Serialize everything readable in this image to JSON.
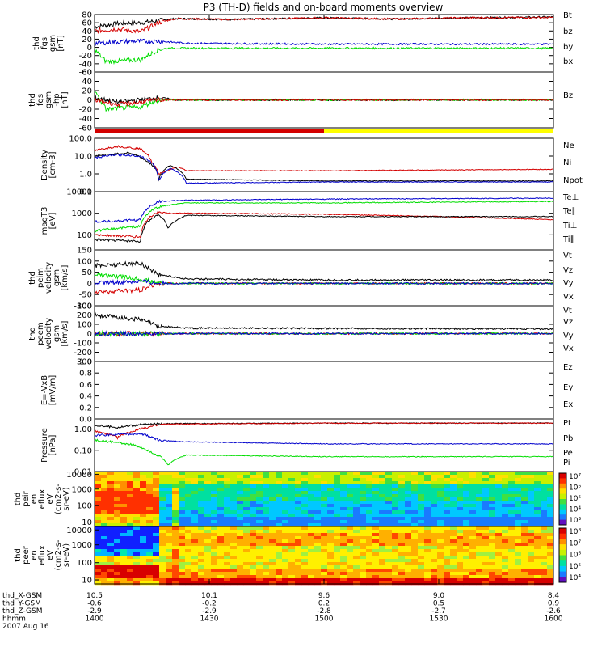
{
  "title": "P3 (TH-D) fields and on-board moments overview",
  "colors": {
    "black": "#000000",
    "red": "#d40000",
    "green": "#00dd00",
    "blue": "#0000cc",
    "yellow": "#ffff00"
  },
  "chart_data": [
    {
      "type": "line",
      "name": "fgs-full",
      "ylabel": [
        "thd",
        "fgs",
        "gsm",
        "[nT]"
      ],
      "yticks": [
        "-60",
        "-40",
        "-20",
        "0",
        "20",
        "40",
        "60",
        "80"
      ],
      "ylim": [
        -60,
        80
      ],
      "series": [
        {
          "name": "Bt",
          "color": "black",
          "points": [
            [
              1400,
              50
            ],
            [
              1410,
              58
            ],
            [
              1420,
              60
            ],
            [
              1428,
              65
            ],
            [
              1435,
              70
            ],
            [
              1460,
              68
            ],
            [
              1500,
              72
            ],
            [
              1530,
              69
            ],
            [
              1560,
              72
            ],
            [
              1600,
              74
            ]
          ]
        },
        {
          "name": "bz",
          "color": "red",
          "points": [
            [
              1400,
              40
            ],
            [
              1410,
              45
            ],
            [
              1420,
              38
            ],
            [
              1428,
              60
            ],
            [
              1435,
              70
            ],
            [
              1460,
              68
            ],
            [
              1500,
              72
            ],
            [
              1530,
              69
            ],
            [
              1560,
              72
            ],
            [
              1600,
              73
            ]
          ]
        },
        {
          "name": "by",
          "color": "green",
          "points": [
            [
              1400,
              -5
            ],
            [
              1405,
              -35
            ],
            [
              1420,
              -30
            ],
            [
              1428,
              -5
            ],
            [
              1432,
              -2
            ],
            [
              1500,
              -2
            ],
            [
              1600,
              -2
            ]
          ]
        },
        {
          "name": "bx",
          "color": "blue",
          "points": [
            [
              1400,
              10
            ],
            [
              1415,
              15
            ],
            [
              1428,
              15
            ],
            [
              1440,
              10
            ],
            [
              1500,
              8
            ],
            [
              1600,
              8
            ]
          ]
        }
      ]
    },
    {
      "type": "line",
      "name": "fgs-hp",
      "ylabel": [
        "thd",
        "fgs",
        "gsm",
        "-hp",
        "[nT]"
      ],
      "yticks": [
        "-60",
        "-40",
        "-20",
        "0",
        "20",
        "40",
        "60"
      ],
      "ylim": [
        -60,
        60
      ],
      "legend": "Bz",
      "series": [
        {
          "name": "Bx",
          "color": "black",
          "points": [
            [
              1400,
              5
            ],
            [
              1410,
              -5
            ],
            [
              1420,
              0
            ],
            [
              1428,
              5
            ],
            [
              1435,
              0
            ],
            [
              1600,
              0
            ]
          ]
        },
        {
          "name": "By",
          "color": "green",
          "points": [
            [
              1400,
              20
            ],
            [
              1405,
              -20
            ],
            [
              1420,
              -15
            ],
            [
              1428,
              0
            ],
            [
              1600,
              0
            ]
          ]
        },
        {
          "name": "Bz",
          "color": "red",
          "points": [
            [
              1400,
              0
            ],
            [
              1410,
              -10
            ],
            [
              1420,
              -5
            ],
            [
              1428,
              0
            ],
            [
              1600,
              0
            ]
          ]
        }
      ]
    },
    {
      "type": "line",
      "name": "density",
      "scale": "log",
      "ylabel": [
        "Density",
        "[cm-3]"
      ],
      "yticks": [
        "0.1",
        "1.0",
        "10.0",
        "100.0"
      ],
      "ylim": [
        0.1,
        100
      ],
      "series": [
        {
          "name": "Ne",
          "color": "red",
          "points": [
            [
              1400,
              20
            ],
            [
              1410,
              35
            ],
            [
              1420,
              25
            ],
            [
              1425,
              4
            ],
            [
              1428,
              1
            ],
            [
              1432,
              1.5
            ],
            [
              1436,
              2.5
            ],
            [
              1440,
              1.5
            ],
            [
              1500,
              1.5
            ],
            [
              1600,
              1.8
            ]
          ]
        },
        {
          "name": "Ni",
          "color": "black",
          "points": [
            [
              1400,
              10
            ],
            [
              1415,
              15
            ],
            [
              1423,
              5
            ],
            [
              1428,
              0.5
            ],
            [
              1433,
              3
            ],
            [
              1440,
              0.5
            ],
            [
              1500,
              0.4
            ],
            [
              1600,
              0.4
            ]
          ]
        },
        {
          "name": "Npot",
          "color": "blue",
          "points": [
            [
              1400,
              8
            ],
            [
              1410,
              12
            ],
            [
              1420,
              10
            ],
            [
              1428,
              0.4
            ],
            [
              1433,
              2
            ],
            [
              1440,
              0.3
            ],
            [
              1500,
              0.35
            ],
            [
              1600,
              0.35
            ]
          ]
        }
      ]
    },
    {
      "type": "line",
      "name": "temperature",
      "scale": "log",
      "ylabel": [
        "magT3",
        "[eV]"
      ],
      "yticks": [
        "100",
        "1000",
        "10000"
      ],
      "ylim": [
        20,
        10000
      ],
      "series": [
        {
          "name": "Te⊥",
          "color": "red",
          "points": [
            [
              1400,
              100
            ],
            [
              1420,
              80
            ],
            [
              1428,
              1200
            ],
            [
              1432,
              1000
            ],
            [
              1440,
              1000
            ],
            [
              1500,
              900
            ],
            [
              1600,
              500
            ]
          ]
        },
        {
          "name": "Te∥",
          "color": "black",
          "points": [
            [
              1400,
              60
            ],
            [
              1420,
              50
            ],
            [
              1428,
              900
            ],
            [
              1432,
              200
            ],
            [
              1440,
              800
            ],
            [
              1500,
              700
            ],
            [
              1600,
              700
            ]
          ]
        },
        {
          "name": "Ti⊥",
          "color": "blue",
          "points": [
            [
              1400,
              400
            ],
            [
              1420,
              500
            ],
            [
              1428,
              3500
            ],
            [
              1440,
              4000
            ],
            [
              1500,
              4500
            ],
            [
              1600,
              5000
            ]
          ]
        },
        {
          "name": "Ti∥",
          "color": "green",
          "points": [
            [
              1400,
              150
            ],
            [
              1420,
              250
            ],
            [
              1428,
              2000
            ],
            [
              1440,
              3000
            ],
            [
              1500,
              3000
            ],
            [
              1600,
              3500
            ]
          ]
        }
      ]
    },
    {
      "type": "line",
      "name": "peim-velocity",
      "ylabel": [
        "thd",
        "peim",
        "velocity",
        "gsm",
        "[km/s]"
      ],
      "yticks": [
        "-100",
        "-50",
        "0",
        "50",
        "100",
        "150"
      ],
      "ylim": [
        -100,
        150
      ],
      "series": [
        {
          "name": "Vt",
          "color": "black",
          "points": [
            [
              1400,
              80
            ],
            [
              1420,
              90
            ],
            [
              1428,
              40
            ],
            [
              1440,
              20
            ],
            [
              1500,
              15
            ],
            [
              1600,
              15
            ]
          ]
        },
        {
          "name": "Vz",
          "color": "red",
          "points": [
            [
              1400,
              -40
            ],
            [
              1420,
              -30
            ],
            [
              1428,
              0
            ],
            [
              1600,
              0
            ]
          ]
        },
        {
          "name": "Vy",
          "color": "green",
          "points": [
            [
              1400,
              40
            ],
            [
              1420,
              20
            ],
            [
              1428,
              0
            ],
            [
              1600,
              0
            ]
          ]
        },
        {
          "name": "Vx",
          "color": "blue",
          "points": [
            [
              1400,
              0
            ],
            [
              1420,
              10
            ],
            [
              1428,
              0
            ],
            [
              1600,
              0
            ]
          ]
        }
      ]
    },
    {
      "type": "line",
      "name": "peem-velocity",
      "ylabel": [
        "thd",
        "peem",
        "velocity",
        "gsm",
        "[km/s]"
      ],
      "yticks": [
        "-300",
        "-200",
        "-100",
        "0",
        "100",
        "200",
        "300"
      ],
      "ylim": [
        -300,
        300
      ],
      "series": [
        {
          "name": "Vt",
          "color": "black",
          "points": [
            [
              1400,
              200
            ],
            [
              1420,
              150
            ],
            [
              1428,
              80
            ],
            [
              1440,
              60
            ],
            [
              1600,
              50
            ]
          ]
        },
        {
          "name": "Vz",
          "color": "red",
          "points": [
            [
              1400,
              0
            ],
            [
              1600,
              0
            ]
          ]
        },
        {
          "name": "Vy",
          "color": "green",
          "points": [
            [
              1400,
              0
            ],
            [
              1600,
              0
            ]
          ]
        },
        {
          "name": "Vx",
          "color": "blue",
          "points": [
            [
              1400,
              0
            ],
            [
              1600,
              0
            ]
          ]
        }
      ]
    },
    {
      "type": "line",
      "name": "efield",
      "ylabel": [
        "E=-VxB",
        "[mV/m]"
      ],
      "yticks": [
        "0.0",
        "0.2",
        "0.4",
        "0.6",
        "0.8",
        "1.0"
      ],
      "ylim": [
        0,
        1
      ],
      "series": [
        {
          "name": "Ez",
          "color": "red",
          "points": []
        },
        {
          "name": "Ey",
          "color": "green",
          "points": []
        },
        {
          "name": "Ex",
          "color": "blue",
          "points": []
        }
      ]
    },
    {
      "type": "line",
      "name": "pressure",
      "scale": "log",
      "ylabel": [
        "Pressure",
        "[nPa]"
      ],
      "yticks": [
        "0.01",
        "0.10",
        "1.00"
      ],
      "ylim": [
        0.01,
        3
      ],
      "series": [
        {
          "name": "Pt",
          "color": "black",
          "points": [
            [
              1400,
              1.5
            ],
            [
              1410,
              1.2
            ],
            [
              1420,
              1.6
            ],
            [
              1430,
              1.8
            ],
            [
              1500,
              1.9
            ],
            [
              1600,
              1.9
            ]
          ]
        },
        {
          "name": "Pb",
          "color": "red",
          "points": [
            [
              1400,
              0.8
            ],
            [
              1410,
              0.4
            ],
            [
              1420,
              1.0
            ],
            [
              1430,
              1.7
            ],
            [
              1500,
              1.9
            ],
            [
              1600,
              1.9
            ]
          ]
        },
        {
          "name": "Pe",
          "color": "green",
          "points": [
            [
              1400,
              0.3
            ],
            [
              1415,
              0.2
            ],
            [
              1425,
              0.08
            ],
            [
              1432,
              0.02
            ],
            [
              1440,
              0.06
            ],
            [
              1500,
              0.05
            ],
            [
              1600,
              0.05
            ]
          ]
        },
        {
          "name": "Pi",
          "color": "blue",
          "points": [
            [
              1400,
              0.5
            ],
            [
              1420,
              0.6
            ],
            [
              1428,
              0.3
            ],
            [
              1440,
              0.25
            ],
            [
              1500,
              0.2
            ],
            [
              1600,
              0.2
            ]
          ]
        }
      ]
    },
    {
      "type": "heatmap",
      "name": "peir-spectrogram",
      "ylabel": [
        "thd",
        "peir",
        "en",
        "eflux",
        "eV",
        "(cm2-s-",
        "sr-eV)"
      ],
      "yticks": [
        "10",
        "100",
        "1000",
        "10000"
      ],
      "colorbar_ticks": [
        "10³",
        "10⁴",
        "10⁵",
        "10⁶",
        "10⁷"
      ]
    },
    {
      "type": "heatmap",
      "name": "peer-spectrogram",
      "ylabel": [
        "thd",
        "peer",
        "en",
        "eflux",
        "eV",
        "(cm2-s-",
        "sr-eV)"
      ],
      "yticks": [
        "10",
        "100",
        "1000",
        "10000"
      ],
      "colorbar_ticks": [
        "10⁴",
        "10⁵",
        "10⁶",
        "10⁷",
        "10⁸"
      ]
    }
  ],
  "status_bar": {
    "segments": [
      {
        "from": 1400,
        "to": 1500,
        "color": "red"
      },
      {
        "from": 1500,
        "to": 1600,
        "color": "yellow"
      }
    ]
  },
  "footer": {
    "rows": [
      {
        "label": "thd_X-GSM",
        "values": [
          "10.5",
          "10.1",
          "9.6",
          "9.0",
          "8.4"
        ]
      },
      {
        "label": "thd_Y-GSM",
        "values": [
          "-0.6",
          "-0.2",
          "0.2",
          "0.5",
          "0.9"
        ]
      },
      {
        "label": "thd_Z-GSM",
        "values": [
          "-2.9",
          "-2.9",
          "-2.8",
          "-2.7",
          "-2.6"
        ]
      },
      {
        "label": "hhmm",
        "values": [
          "1400",
          "1430",
          "1500",
          "1530",
          "1600"
        ]
      }
    ],
    "date": "2007 Aug 16"
  }
}
